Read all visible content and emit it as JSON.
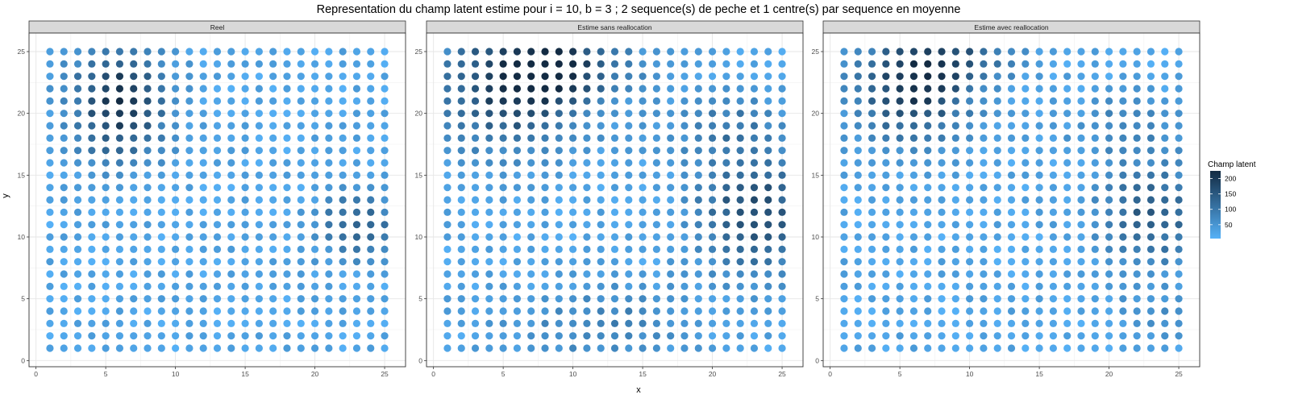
{
  "chart_data": {
    "type": "scatter",
    "title": "Representation du champ latent estime pour i = 10, b = 3 ; 2 sequence(s) de peche et 1 centre(s) par sequence en moyenne",
    "xlabel": "x",
    "ylabel": "y",
    "xlim": [
      -0.5,
      26.5
    ],
    "ylim": [
      -0.5,
      26.5
    ],
    "x_ticks": [
      0,
      5,
      10,
      15,
      20,
      25
    ],
    "y_ticks": [
      0,
      5,
      10,
      15,
      20,
      25
    ],
    "grid": true,
    "grid_size": [
      25,
      25
    ],
    "legend": {
      "title": "Champ latent",
      "position": "right",
      "ticks": [
        50,
        100,
        150,
        200
      ],
      "range": [
        5,
        225
      ],
      "color_low": "#56b1f7",
      "color_high": "#132b43"
    },
    "facets": [
      {
        "label": "Reel",
        "hotspots": [
          {
            "x": 6,
            "y": 21,
            "peak": 220,
            "sx": 2.3,
            "sy": 3.2
          },
          {
            "x": 23,
            "y": 11,
            "peak": 150,
            "sx": 1.9,
            "sy": 1.8
          }
        ]
      },
      {
        "label": "Estime sans reallocation",
        "hotspots": [
          {
            "x": 6,
            "y": 22,
            "peak": 200,
            "sx": 3.6,
            "sy": 3.3
          },
          {
            "x": 9,
            "y": 24,
            "peak": 150,
            "sx": 3.5,
            "sy": 1.8
          },
          {
            "x": 23,
            "y": 12,
            "peak": 175,
            "sx": 2.8,
            "sy": 3.3
          },
          {
            "x": 21,
            "y": 19,
            "peak": 90,
            "sx": 3.0,
            "sy": 2.0
          },
          {
            "x": 12,
            "y": 3,
            "peak": 85,
            "sx": 4.5,
            "sy": 2.2
          }
        ]
      },
      {
        "label": "Estime avec reallocation",
        "hotspots": [
          {
            "x": 6,
            "y": 22,
            "peak": 205,
            "sx": 2.8,
            "sy": 3.0
          },
          {
            "x": 9,
            "y": 24.5,
            "peak": 120,
            "sx": 3.0,
            "sy": 1.5
          },
          {
            "x": 23,
            "y": 12,
            "peak": 150,
            "sx": 2.5,
            "sy": 2.8
          },
          {
            "x": 21,
            "y": 19,
            "peak": 80,
            "sx": 2.5,
            "sy": 1.8
          },
          {
            "x": 23,
            "y": 4,
            "peak": 55,
            "sx": 2.0,
            "sy": 2.0
          }
        ]
      }
    ],
    "base_value": 25
  }
}
